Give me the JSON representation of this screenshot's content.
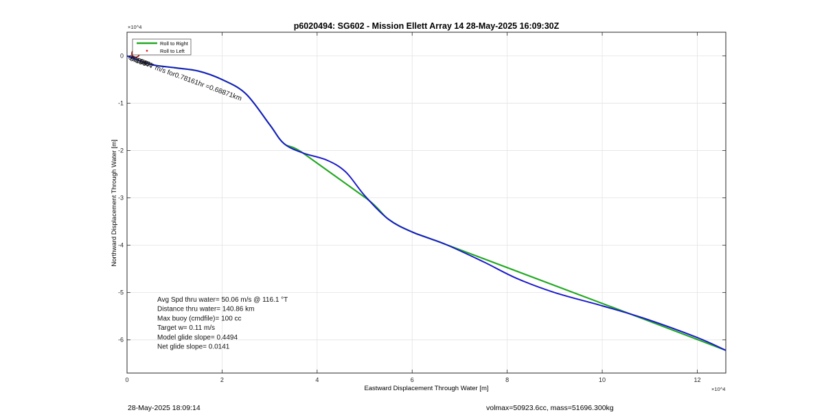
{
  "chart_data": {
    "type": "line",
    "title": "p6020494: SG602 - Mission Ellett Array 14 28-May-2025 16:09:30Z",
    "xlabel": "Eastward Displacement Through Water [m]",
    "ylabel": "Northward Displacement Through Water [m]",
    "x_multiplier": "×10^4",
    "y_multiplier": "×10^4",
    "xlim": [
      0,
      12.6
    ],
    "ylim": [
      -6.7,
      0.5
    ],
    "xticks": [
      "0",
      "2",
      "4",
      "6",
      "8",
      "10",
      "12"
    ],
    "xtick_values": [
      0,
      2,
      4,
      6,
      8,
      10,
      12
    ],
    "yticks": [
      "0",
      "-1",
      "-2",
      "-3",
      "-4",
      "-5",
      "-6"
    ],
    "ytick_values": [
      0,
      -1,
      -2,
      -3,
      -4,
      -5,
      -6
    ],
    "grid": true,
    "legend_position": "top-left",
    "legend": [
      "Roll to Right",
      "Roll to Left"
    ],
    "series": [
      {
        "name": "Roll to Right",
        "color": "#22a822",
        "x": [
          0,
          0.5,
          1,
          1.5,
          2,
          2.5,
          3,
          3.3,
          3.7,
          5.05,
          5.5,
          6,
          6.7,
          10.9,
          12.6
        ],
        "y": [
          0,
          -0.18,
          -0.25,
          -0.32,
          -0.5,
          -0.8,
          -1.45,
          -1.85,
          -2.05,
          -3.02,
          -3.45,
          -3.72,
          -3.98,
          -5.57,
          -6.22
        ]
      },
      {
        "name": "Roll to Left",
        "color": "#dd2222",
        "x": [],
        "y": []
      },
      {
        "name": "",
        "color": "#1a1acc",
        "x": [
          0,
          0.5,
          1,
          1.5,
          2,
          2.5,
          3,
          3.3,
          3.7,
          4.2,
          4.6,
          5.0,
          5.5,
          6,
          6.7,
          7.5,
          8.2,
          9,
          10,
          10.9,
          12,
          12.6
        ],
        "y": [
          0,
          -0.18,
          -0.25,
          -0.32,
          -0.5,
          -0.8,
          -1.45,
          -1.85,
          -2.05,
          -2.2,
          -2.45,
          -2.95,
          -3.45,
          -3.72,
          -3.98,
          -4.35,
          -4.7,
          -5.0,
          -5.28,
          -5.55,
          -5.95,
          -6.22
        ]
      }
    ],
    "annotations": [
      {
        "text": "0.15677 m/s for0.78161hr =0.68871km",
        "x": 0.05,
        "y": -0.05,
        "rotation": 20
      },
      {
        "text": "0.1528",
        "x": 0.02,
        "y": -0.02,
        "rotation": 20
      },
      {
        "text": "0.1549",
        "x": 0.08,
        "y": -0.04,
        "rotation": 20
      },
      {
        "text": "0.1551",
        "x": 0.13,
        "y": -0.06,
        "rotation": 20
      }
    ],
    "start_marker": {
      "x": 0.18,
      "y": 0.05,
      "color": "#bb1111"
    },
    "stats": [
      "Avg Spd thru water= 50.06 m/s @ 116.1 °T",
      "Distance thru water= 140.86 km",
      "Max buoy (cmdfile)= 100 cc",
      "Target w= 0.11 m/s",
      "Model glide slope= 0.4494",
      "Net glide slope= 0.0141"
    ]
  },
  "footer": {
    "left": "28-May-2025 18:09:14",
    "right": "volmax=50923.6cc, mass=51696.300kg"
  }
}
